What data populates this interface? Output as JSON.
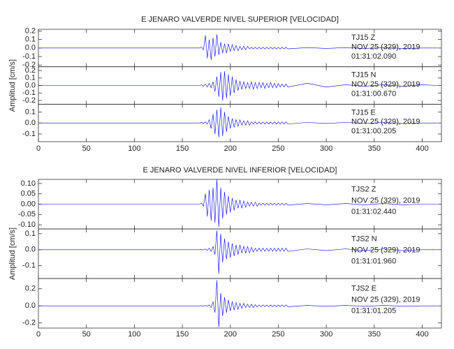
{
  "chart_data": [
    {
      "type": "line",
      "title": "E JENARO VALVERDE NIVEL SUPERIOR [VELOCIDAD]",
      "ylabel": "Amplitud [cm/s]",
      "xlim": [
        0,
        420
      ],
      "xticks": [
        0,
        50,
        100,
        150,
        200,
        250,
        300,
        350,
        400
      ],
      "x": [
        0,
        40,
        80,
        120,
        160,
        168,
        170,
        172,
        174,
        176,
        178,
        180,
        182,
        184,
        186,
        188,
        190,
        192,
        194,
        196,
        198,
        200,
        202,
        204,
        206,
        208,
        210,
        212,
        214,
        216,
        218,
        220,
        222,
        224,
        226,
        228,
        230,
        232,
        234,
        236,
        238,
        240,
        242,
        244,
        246,
        248,
        250,
        252,
        254,
        256,
        258,
        260,
        280,
        300,
        320,
        340,
        360,
        380,
        400,
        416
      ],
      "panels": [
        {
          "ylim": [
            -0.22,
            0.22
          ],
          "yticks": [
            0.2,
            0.1,
            {
              "value": 0,
              "label": "0.0"
            },
            -0.1,
            -0.2
          ],
          "annotations": [
            "TJ15   Z",
            "NOV 25 (329), 2019",
            "01:31:02.090"
          ],
          "color": "#0000ff",
          "values": [
            0,
            0,
            0,
            0,
            0,
            0,
            0.01,
            -0.02,
            0.15,
            -0.12,
            0.1,
            -0.14,
            0.12,
            -0.1,
            0.16,
            -0.08,
            0.07,
            -0.06,
            0.05,
            -0.06,
            0.05,
            -0.04,
            0.04,
            -0.03,
            0.03,
            -0.03,
            0.02,
            -0.02,
            0.02,
            -0.02,
            0.02,
            -0.01,
            0.01,
            -0.01,
            0.01,
            -0.01,
            0.01,
            -0.01,
            0.01,
            -0.01,
            0.01,
            -0.01,
            0.01,
            -0.01,
            0.01,
            -0.01,
            0.01,
            -0.01,
            0.01,
            -0.01,
            0.01,
            -0.01,
            0.005,
            -0.005,
            0.005,
            -0.005,
            0.005,
            -0.005,
            0,
            0
          ]
        },
        {
          "ylim": [
            -0.25,
            0.25
          ],
          "yticks": [
            0.2,
            0.1,
            {
              "value": 0,
              "label": "0.0"
            },
            -0.1,
            -0.2
          ],
          "annotations": [
            "TJ15   N",
            "NOV 25 (329), 2019",
            "01:31:00.670"
          ],
          "color": "#0000ff",
          "values": [
            0,
            0,
            0,
            0,
            0,
            0,
            0.01,
            -0.01,
            0.02,
            -0.02,
            0.03,
            -0.03,
            0.05,
            -0.08,
            0.12,
            -0.15,
            0.18,
            -0.2,
            0.19,
            -0.17,
            0.15,
            -0.14,
            0.12,
            -0.1,
            0.08,
            -0.07,
            0.06,
            -0.05,
            0.05,
            -0.04,
            0.04,
            -0.04,
            0.05,
            -0.05,
            0.04,
            -0.04,
            0.04,
            -0.03,
            0.04,
            -0.04,
            0.03,
            -0.03,
            0.04,
            -0.03,
            0.03,
            -0.03,
            0.03,
            -0.02,
            0.02,
            -0.02,
            0.02,
            -0.02,
            0.03,
            -0.02,
            0.01,
            -0.01,
            0.01,
            -0.01,
            0.01,
            0
          ]
        },
        {
          "ylim": [
            -0.17,
            0.17
          ],
          "yticks": [
            0.1,
            {
              "value": 0,
              "label": "0.0"
            },
            -0.1
          ],
          "annotations": [
            "TJ15   E",
            "NOV 25 (329), 2019",
            "01:31:00.205"
          ],
          "color": "#0000ff",
          "values": [
            0,
            0,
            0,
            0,
            0,
            0,
            0.005,
            -0.005,
            0.01,
            -0.01,
            0.03,
            -0.05,
            0.08,
            -0.1,
            0.12,
            -0.13,
            0.14,
            -0.12,
            0.1,
            -0.08,
            0.06,
            -0.05,
            0.04,
            -0.04,
            0.03,
            -0.03,
            0.03,
            -0.02,
            0.02,
            -0.02,
            0.02,
            -0.02,
            0.01,
            -0.01,
            0.01,
            -0.01,
            0.01,
            -0.01,
            0.01,
            -0.01,
            0.01,
            -0.01,
            0.01,
            -0.01,
            0.01,
            -0.01,
            0.01,
            -0.01,
            0.01,
            -0.01,
            0.01,
            -0.01,
            0.005,
            -0.005,
            0.005,
            -0.005,
            0.005,
            -0.005,
            0,
            0
          ]
        }
      ]
    },
    {
      "type": "line",
      "title": "E JENARO VALVERDE NIVEL INFERIOR [VELOCIDAD]",
      "ylabel": "Amplitud [cm/s]",
      "xlim": [
        0,
        420
      ],
      "xticks": [
        0,
        50,
        100,
        150,
        200,
        250,
        300,
        350,
        400
      ],
      "x": [
        0,
        40,
        80,
        120,
        160,
        168,
        170,
        172,
        174,
        176,
        178,
        180,
        182,
        184,
        186,
        188,
        190,
        192,
        194,
        196,
        198,
        200,
        202,
        204,
        206,
        208,
        210,
        212,
        214,
        216,
        218,
        220,
        222,
        224,
        226,
        228,
        230,
        232,
        234,
        236,
        238,
        240,
        242,
        244,
        246,
        248,
        250,
        252,
        254,
        256,
        258,
        260,
        280,
        300,
        320,
        340,
        360,
        380,
        400,
        416
      ],
      "panels": [
        {
          "ylim": [
            -0.12,
            0.12
          ],
          "yticks": [
            {
              "value": 0.1,
              "label": "0.10"
            },
            {
              "value": 0.05,
              "label": "0.05"
            },
            {
              "value": 0,
              "label": "0.00"
            },
            {
              "value": -0.05,
              "label": "-0.05"
            },
            {
              "value": -0.1,
              "label": "-0.10"
            }
          ],
          "annotations": [
            "TJS2   Z",
            "NOV 25 (329), 2019",
            "01:31:02.440"
          ],
          "color": "#0000ff",
          "values": [
            0,
            0,
            0,
            0,
            0,
            0,
            0.005,
            -0.01,
            0.05,
            -0.06,
            0.07,
            -0.08,
            0.08,
            -0.09,
            0.12,
            -0.11,
            0.08,
            -0.07,
            0.06,
            -0.05,
            0.04,
            -0.04,
            0.03,
            -0.03,
            0.02,
            -0.02,
            0.02,
            -0.02,
            0.015,
            -0.015,
            0.01,
            -0.01,
            0.01,
            -0.01,
            0.01,
            -0.01,
            0.005,
            -0.005,
            0.005,
            -0.005,
            0.005,
            -0.005,
            0.005,
            -0.005,
            0.005,
            -0.005,
            0.005,
            -0.005,
            0.005,
            -0.005,
            0.005,
            -0.005,
            0.003,
            -0.003,
            0.003,
            -0.003,
            0.003,
            -0.003,
            0,
            0
          ]
        },
        {
          "ylim": [
            -0.18,
            0.13
          ],
          "yticks": [
            0.1,
            {
              "value": 0,
              "label": "0.0"
            },
            -0.1
          ],
          "annotations": [
            "TJS2   N",
            "NOV 25 (329), 2019",
            "01:31:01.960"
          ],
          "color": "#0000ff",
          "values": [
            0,
            0,
            0,
            0,
            0,
            0,
            0.002,
            -0.002,
            0.005,
            -0.005,
            0.01,
            -0.01,
            0.02,
            -0.03,
            0.12,
            -0.15,
            0.1,
            -0.08,
            0.07,
            -0.06,
            0.05,
            -0.05,
            0.04,
            -0.04,
            0.03,
            -0.03,
            0.03,
            -0.02,
            0.02,
            -0.02,
            0.02,
            -0.02,
            0.015,
            -0.015,
            0.01,
            -0.01,
            0.01,
            -0.01,
            0.01,
            -0.01,
            0.01,
            -0.01,
            0.01,
            -0.01,
            0.01,
            -0.01,
            0.01,
            -0.01,
            0.01,
            -0.01,
            0.01,
            -0.01,
            0.005,
            -0.005,
            0.005,
            -0.005,
            0.005,
            -0.005,
            0,
            0
          ]
        },
        {
          "ylim": [
            -0.26,
            0.32
          ],
          "yticks": [
            0.2,
            {
              "value": 0,
              "label": "0.0"
            },
            -0.2
          ],
          "annotations": [
            "TJS2   E",
            "NOV 25 (329), 2019",
            "01:31:01.205"
          ],
          "color": "#0000ff",
          "values": [
            0,
            0,
            0,
            0,
            0,
            0,
            0.002,
            -0.002,
            0.005,
            -0.005,
            0.01,
            -0.02,
            0.05,
            -0.08,
            0.3,
            -0.25,
            0.15,
            -0.12,
            0.1,
            -0.08,
            0.07,
            -0.06,
            0.05,
            -0.05,
            0.04,
            -0.04,
            0.03,
            -0.03,
            0.03,
            -0.02,
            0.02,
            -0.02,
            0.02,
            -0.02,
            0.015,
            -0.015,
            0.01,
            -0.01,
            0.01,
            -0.01,
            0.01,
            -0.01,
            0.01,
            -0.01,
            0.01,
            -0.01,
            0.01,
            -0.01,
            0.01,
            -0.01,
            0.01,
            -0.01,
            0.005,
            -0.005,
            0.005,
            -0.005,
            0.005,
            -0.005,
            0,
            0
          ]
        }
      ]
    }
  ]
}
